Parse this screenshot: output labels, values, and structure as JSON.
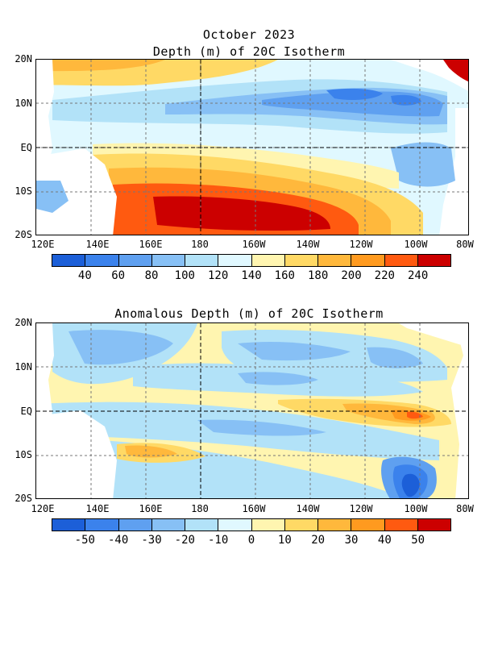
{
  "titles": {
    "line1": "October 2023",
    "line2": "Depth (m) of 20C Isotherm",
    "line3": "Anomalous Depth (m) of 20C Isotherm"
  },
  "lat_labels": [
    "20N",
    "10N",
    "EQ",
    "10S",
    "20S"
  ],
  "lon_labels": [
    "120E",
    "140E",
    "160E",
    "180",
    "160W",
    "140W",
    "120W",
    "100W",
    "80W"
  ],
  "colorbar1": {
    "colors": [
      "#1c5fd8",
      "#3b82ec",
      "#5fa0f0",
      "#87c0f5",
      "#b2e2f8",
      "#e0f8ff",
      "#fff5b0",
      "#ffd965",
      "#ffb83c",
      "#ff9a1f",
      "#ff5a10",
      "#cc0000"
    ],
    "labels": [
      "40",
      "60",
      "80",
      "100",
      "120",
      "140",
      "160",
      "180",
      "200",
      "220",
      "240"
    ]
  },
  "colorbar2": {
    "colors": [
      "#1c5fd8",
      "#3b82ec",
      "#5fa0f0",
      "#87c0f5",
      "#b2e2f8",
      "#e0f8ff",
      "#fff5b0",
      "#ffd965",
      "#ffb83c",
      "#ff9a1f",
      "#ff5a10",
      "#cc0000"
    ],
    "labels": [
      "-50",
      "-40",
      "-30",
      "-20",
      "-10",
      "0",
      "10",
      "20",
      "30",
      "40",
      "50"
    ]
  }
}
